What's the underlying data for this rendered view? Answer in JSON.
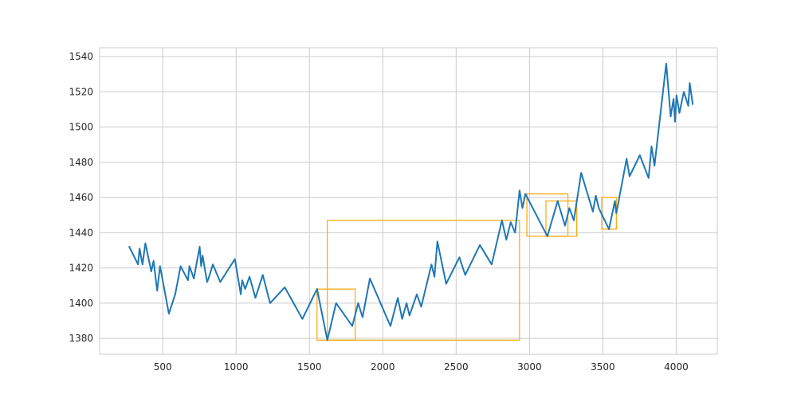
{
  "chart_data": {
    "type": "line",
    "title": "",
    "xlabel": "",
    "ylabel": "",
    "xlim": [
      70,
      4280
    ],
    "ylim": [
      1371,
      1545
    ],
    "grid": true,
    "x_ticks": [
      500,
      1000,
      1500,
      2000,
      2500,
      3000,
      3500,
      4000
    ],
    "y_ticks": [
      1380,
      1400,
      1420,
      1440,
      1460,
      1480,
      1500,
      1520,
      1540
    ],
    "colors": {
      "line": "#1f77b4",
      "boxes": "#ffa500"
    },
    "series": [
      {
        "x": [
          272,
          332,
          342,
          362,
          382,
          422,
          438,
          462,
          482,
          542,
          585,
          622,
          672,
          682,
          695,
          712,
          752,
          762,
          772,
          802,
          812,
          842,
          892,
          992,
          1032,
          1042,
          1062,
          1092,
          1132,
          1182,
          1232,
          1332,
          1452,
          1552,
          1622,
          1682,
          1792,
          1832,
          1862,
          1912,
          2052,
          2102,
          2132,
          2162,
          2182,
          2232,
          2262,
          2332,
          2352,
          2372,
          2432,
          2522,
          2562,
          2662,
          2742,
          2812,
          2842,
          2872,
          2902,
          2932,
          2952,
          2972,
          3122,
          3192,
          3242,
          3272,
          3302,
          3352,
          3432,
          3452,
          3472,
          3542,
          3582,
          3592,
          3662,
          3682,
          3752,
          3812,
          3832,
          3852,
          3932,
          3962,
          3982,
          3992,
          4002,
          4022,
          4052,
          4082,
          4092,
          4112
        ],
        "y": [
          1432,
          1422,
          1431,
          1422,
          1434,
          1418,
          1424,
          1407,
          1421,
          1394,
          1405,
          1421,
          1413,
          1421,
          1418,
          1414,
          1432,
          1421,
          1427,
          1412,
          1414,
          1422,
          1412,
          1425,
          1405,
          1413,
          1408,
          1415,
          1403,
          1416,
          1400,
          1409,
          1391,
          1408,
          1379,
          1400,
          1387,
          1400,
          1392,
          1414,
          1387,
          1403,
          1391,
          1400,
          1393,
          1405,
          1398,
          1422,
          1415,
          1435,
          1411,
          1426,
          1416,
          1433,
          1422,
          1447,
          1436,
          1446,
          1440,
          1464,
          1454,
          1462,
          1438,
          1458,
          1444,
          1454,
          1447,
          1474,
          1452,
          1461,
          1454,
          1442,
          1458,
          1451,
          1482,
          1472,
          1484,
          1471,
          1489,
          1478,
          1536,
          1506,
          1516,
          1503,
          1518,
          1508,
          1520,
          1512,
          1525,
          1513
        ]
      }
    ],
    "boxes": [
      {
        "x0": 1622,
        "x1": 2932,
        "y0": 1379,
        "y1": 1447
      },
      {
        "x0": 1552,
        "x1": 1812,
        "y0": 1379,
        "y1": 1408
      },
      {
        "x0": 2982,
        "x1": 3262,
        "y0": 1438,
        "y1": 1462
      },
      {
        "x0": 3112,
        "x1": 3322,
        "y0": 1438,
        "y1": 1458
      },
      {
        "x0": 3492,
        "x1": 3592,
        "y0": 1442,
        "y1": 1460
      }
    ]
  }
}
